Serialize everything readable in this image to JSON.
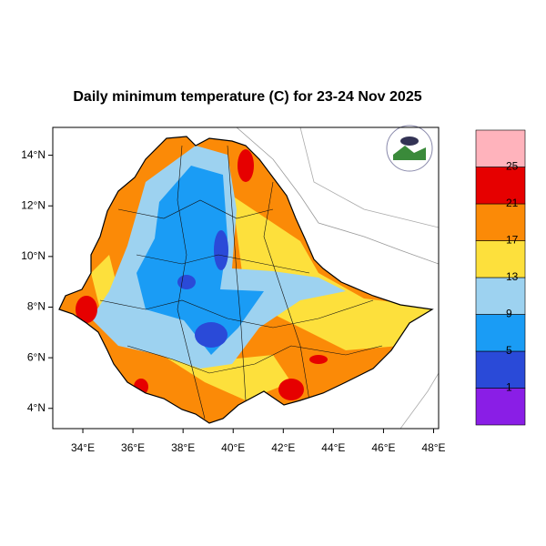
{
  "title": "Daily minimum temperature (C) for 23-24 Nov 2025",
  "map": {
    "xlim": [
      32.8,
      48.2
    ],
    "ylim": [
      3.2,
      15.1
    ],
    "xticks": [
      {
        "value": 34,
        "label": "34°E"
      },
      {
        "value": 36,
        "label": "36°E"
      },
      {
        "value": 38,
        "label": "38°E"
      },
      {
        "value": 40,
        "label": "40°E"
      },
      {
        "value": 42,
        "label": "42°E"
      },
      {
        "value": 44,
        "label": "44°E"
      },
      {
        "value": 46,
        "label": "46°E"
      },
      {
        "value": 48,
        "label": "48°E"
      }
    ],
    "yticks": [
      {
        "value": 4,
        "label": "4°N"
      },
      {
        "value": 6,
        "label": "6°N"
      },
      {
        "value": 8,
        "label": "8°N"
      },
      {
        "value": 10,
        "label": "10°N"
      },
      {
        "value": 12,
        "label": "12°N"
      },
      {
        "value": 14,
        "label": "14°N"
      }
    ]
  },
  "colorbar": {
    "levels": [
      1,
      5,
      9,
      13,
      17,
      21,
      25
    ],
    "colors": [
      "#8a1ee6",
      "#2a4ad8",
      "#1a9cf5",
      "#9dd2f0",
      "#fde03c",
      "#fb8a07",
      "#e60000",
      "#ffb3bc"
    ]
  }
}
